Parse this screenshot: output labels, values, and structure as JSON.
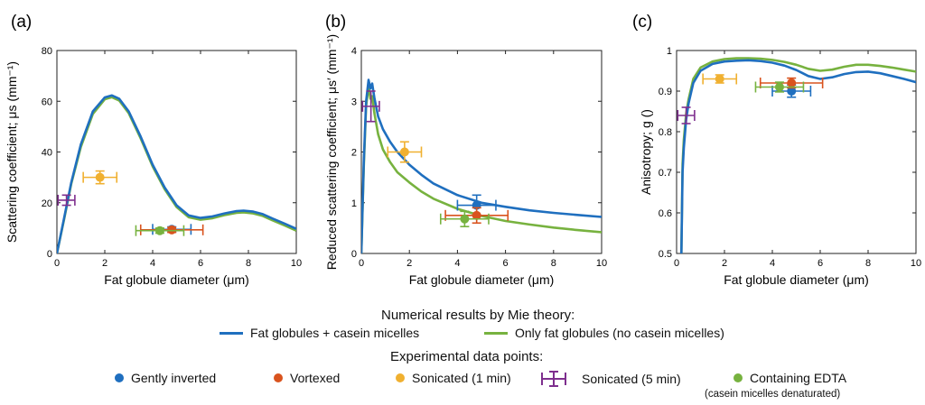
{
  "colors": {
    "with_casein": "#1f6fbf",
    "fat_only": "#77b23f",
    "gently_inverted": "#1f6fbf",
    "vortexed": "#d9531e",
    "sonicated_1min": "#f0b030",
    "sonicated_5min": "#7e2f8e",
    "edta": "#77b23f"
  },
  "legend": {
    "theory_title": "Numerical results by Mie theory:",
    "theory_items": [
      "Fat globules + casein micelles",
      "Only fat globules (no casein micelles)"
    ],
    "exp_title": "Experimental data points:",
    "exp_items": [
      "Gently inverted",
      "Vortexed",
      "Sonicated (1 min)",
      "Sonicated (5 min)",
      "Containing EDTA"
    ],
    "edta_note": "(casein micelles denaturated)"
  },
  "chart_data": [
    {
      "panel": "(a)",
      "type": "line",
      "xlabel": "Fat globule diameter (μm)",
      "ylabel": "Scattering coefficient; μs (mm⁻¹)",
      "xlim": [
        0,
        10
      ],
      "ylim": [
        0,
        80
      ],
      "xticks": [
        0,
        2,
        4,
        6,
        8,
        10
      ],
      "yticks": [
        0,
        20,
        40,
        60,
        80
      ],
      "series": [
        {
          "name": "Fat globules + casein micelles",
          "x": [
            0,
            0.3,
            0.6,
            1.0,
            1.5,
            2.0,
            2.3,
            2.6,
            3.0,
            3.5,
            4.0,
            4.5,
            5.0,
            5.5,
            6.0,
            6.5,
            7.0,
            7.5,
            7.8,
            8.2,
            8.6,
            9.0,
            9.5,
            10.0
          ],
          "y": [
            0,
            14,
            28,
            43,
            56,
            61.5,
            62.3,
            61,
            56,
            46,
            35,
            26,
            19,
            15,
            14,
            14.6,
            15.8,
            16.7,
            16.9,
            16.5,
            15.5,
            13.8,
            11.8,
            9.7
          ]
        },
        {
          "name": "Only fat globules (no casein micelles)",
          "x": [
            0,
            0.3,
            0.6,
            1.0,
            1.5,
            2.0,
            2.3,
            2.6,
            3.0,
            3.5,
            4.0,
            4.5,
            5.0,
            5.5,
            6.0,
            6.5,
            7.0,
            7.5,
            7.8,
            8.2,
            8.6,
            9.0,
            9.5,
            10.0
          ],
          "y": [
            0,
            13.5,
            27.5,
            42,
            55,
            60.8,
            61.6,
            60.3,
            55.3,
            45.3,
            34.3,
            25.3,
            18.3,
            14.3,
            13.3,
            13.9,
            15.1,
            16.0,
            16.2,
            15.8,
            14.8,
            13.1,
            11.1,
            9.0
          ]
        }
      ],
      "points": [
        {
          "name": "Gently inverted",
          "x": 4.8,
          "y": 9.5,
          "xerr": 0.8,
          "yerr": 1
        },
        {
          "name": "Vortexed",
          "x": 4.8,
          "y": 9.3,
          "xerr": 1.3,
          "yerr": 1
        },
        {
          "name": "Sonicated (1 min)",
          "x": 1.8,
          "y": 30,
          "xerr": 0.7,
          "yerr": 2.5
        },
        {
          "name": "Sonicated (5 min)",
          "x": 0.4,
          "y": 21,
          "xerr": 0.35,
          "yerr": 2
        },
        {
          "name": "Containing EDTA",
          "x": 4.3,
          "y": 9,
          "xerr": 1.0,
          "yerr": 1
        }
      ]
    },
    {
      "panel": "(b)",
      "type": "line",
      "xlabel": "Fat globule diameter (μm)",
      "ylabel": "Reduced scattering coefficient; μs′ (mm⁻¹)",
      "xlim": [
        0,
        10
      ],
      "ylim": [
        0,
        4
      ],
      "xticks": [
        0,
        2,
        4,
        6,
        8,
        10
      ],
      "yticks": [
        0,
        1,
        2,
        3,
        4
      ],
      "series": [
        {
          "name": "Fat globules + casein micelles",
          "x": [
            0,
            0.1,
            0.2,
            0.3,
            0.38,
            0.45,
            0.55,
            0.7,
            0.9,
            1.2,
            1.5,
            2.0,
            2.5,
            3.0,
            4.0,
            5.0,
            6.0,
            7.0,
            8.0,
            9.0,
            10.0
          ],
          "y": [
            0,
            1.8,
            3.0,
            3.42,
            3.25,
            3.35,
            3.05,
            2.7,
            2.45,
            2.2,
            2.0,
            1.75,
            1.55,
            1.38,
            1.15,
            1.0,
            0.92,
            0.85,
            0.8,
            0.76,
            0.72
          ]
        },
        {
          "name": "Only fat globules (no casein micelles)",
          "x": [
            0,
            0.1,
            0.2,
            0.3,
            0.38,
            0.45,
            0.55,
            0.7,
            0.9,
            1.2,
            1.5,
            2.0,
            2.5,
            3.0,
            4.0,
            5.0,
            6.0,
            7.0,
            8.0,
            9.0,
            10.0
          ],
          "y": [
            0,
            1.7,
            2.9,
            3.3,
            3.05,
            3.1,
            2.75,
            2.35,
            2.05,
            1.8,
            1.6,
            1.4,
            1.22,
            1.08,
            0.88,
            0.74,
            0.64,
            0.57,
            0.51,
            0.46,
            0.42
          ]
        }
      ],
      "points": [
        {
          "name": "Gently inverted",
          "x": 4.8,
          "y": 0.95,
          "xerr": 0.8,
          "yerr": 0.2
        },
        {
          "name": "Vortexed",
          "x": 4.8,
          "y": 0.75,
          "xerr": 1.3,
          "yerr": 0.15
        },
        {
          "name": "Sonicated (1 min)",
          "x": 1.8,
          "y": 2.0,
          "xerr": 0.7,
          "yerr": 0.2
        },
        {
          "name": "Sonicated (5 min)",
          "x": 0.4,
          "y": 2.9,
          "xerr": 0.35,
          "yerr": 0.3
        },
        {
          "name": "Containing EDTA",
          "x": 4.3,
          "y": 0.68,
          "xerr": 1.0,
          "yerr": 0.15
        }
      ]
    },
    {
      "panel": "(c)",
      "type": "line",
      "xlabel": "Fat globule diameter (μm)",
      "ylabel": "Anisotropy; g ()",
      "xlim": [
        0,
        10
      ],
      "ylim": [
        0.5,
        1
      ],
      "xticks": [
        0,
        2,
        4,
        6,
        8,
        10
      ],
      "yticks": [
        0.5,
        0.6,
        0.7,
        0.8,
        0.9,
        1
      ],
      "series": [
        {
          "name": "Fat globules + casein micelles",
          "x": [
            0.2,
            0.25,
            0.3,
            0.4,
            0.5,
            0.7,
            1.0,
            1.5,
            2.0,
            2.5,
            3.0,
            3.5,
            4.0,
            4.5,
            5.0,
            5.5,
            6.0,
            6.5,
            7.0,
            7.5,
            8.0,
            8.5,
            9.0,
            9.5,
            10.0
          ],
          "y": [
            0.5,
            0.7,
            0.76,
            0.83,
            0.87,
            0.92,
            0.95,
            0.967,
            0.973,
            0.975,
            0.976,
            0.974,
            0.97,
            0.963,
            0.952,
            0.937,
            0.93,
            0.934,
            0.942,
            0.947,
            0.948,
            0.944,
            0.937,
            0.93,
            0.922
          ]
        },
        {
          "name": "Only fat globules (no casein micelles)",
          "x": [
            0.2,
            0.25,
            0.3,
            0.4,
            0.5,
            0.7,
            1.0,
            1.5,
            2.0,
            2.5,
            3.0,
            3.5,
            4.0,
            4.5,
            5.0,
            5.5,
            6.0,
            6.5,
            7.0,
            7.5,
            8.0,
            8.5,
            9.0,
            9.5,
            10.0
          ],
          "y": [
            0.5,
            0.72,
            0.78,
            0.845,
            0.88,
            0.93,
            0.958,
            0.973,
            0.979,
            0.981,
            0.981,
            0.98,
            0.977,
            0.972,
            0.965,
            0.955,
            0.95,
            0.953,
            0.96,
            0.965,
            0.965,
            0.962,
            0.958,
            0.953,
            0.948
          ]
        }
      ],
      "points": [
        {
          "name": "Gently inverted",
          "x": 4.8,
          "y": 0.9,
          "xerr": 0.8,
          "yerr": 0.015
        },
        {
          "name": "Vortexed",
          "x": 4.8,
          "y": 0.92,
          "xerr": 1.3,
          "yerr": 0.012
        },
        {
          "name": "Sonicated (1 min)",
          "x": 1.8,
          "y": 0.93,
          "xerr": 0.7,
          "yerr": 0.01
        },
        {
          "name": "Sonicated (5 min)",
          "x": 0.4,
          "y": 0.84,
          "xerr": 0.35,
          "yerr": 0.02
        },
        {
          "name": "Containing EDTA",
          "x": 4.3,
          "y": 0.91,
          "xerr": 1.0,
          "yerr": 0.012
        }
      ]
    }
  ]
}
